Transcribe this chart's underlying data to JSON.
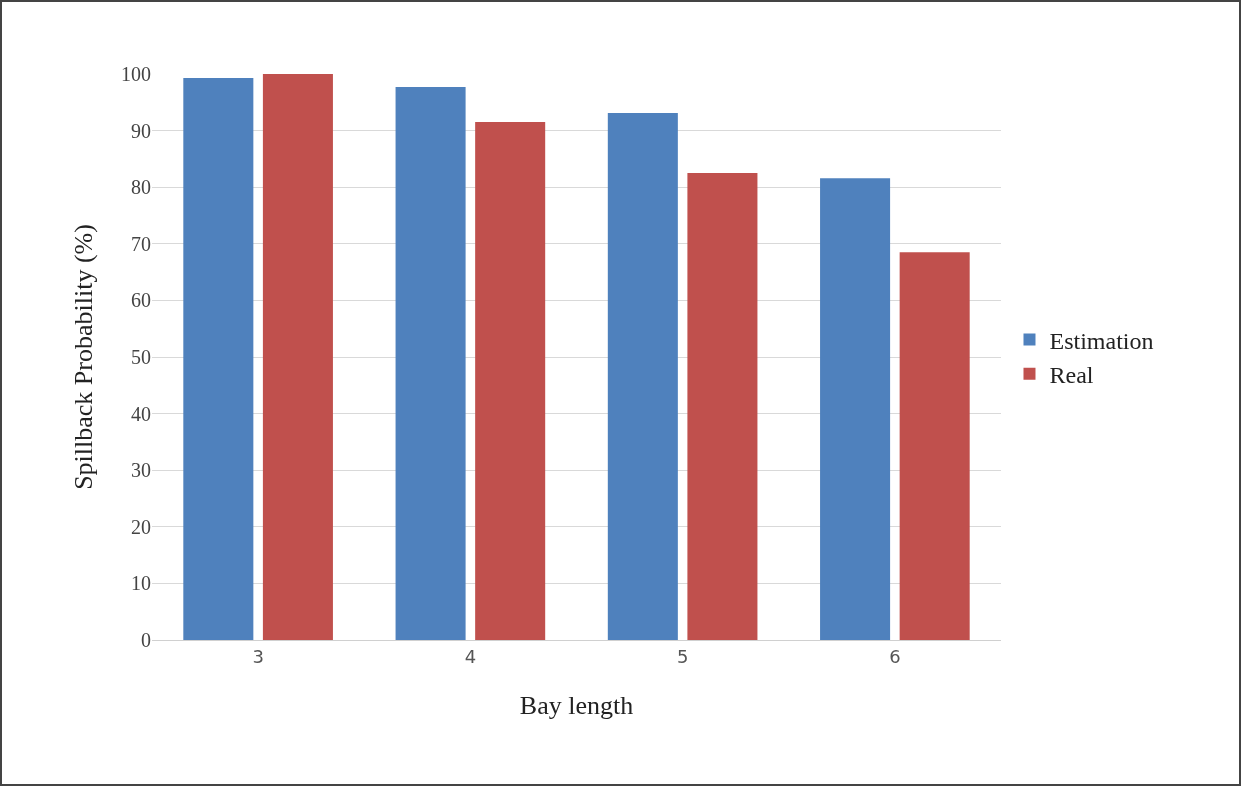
{
  "chart_data": {
    "type": "bar",
    "xlabel": "Bay length",
    "ylabel": "Spillback Probability (%)",
    "categories": [
      "3",
      "4",
      "5",
      "6"
    ],
    "series": [
      {
        "name": "Estimation",
        "color": "#4f81bd",
        "values": [
          99.3,
          97.7,
          93.1,
          81.6
        ]
      },
      {
        "name": "Real",
        "color": "#c0504d",
        "values": [
          100,
          91.5,
          82.5,
          68.5
        ]
      }
    ],
    "ylim": [
      0,
      100
    ],
    "yticks": [
      0,
      10,
      20,
      30,
      40,
      50,
      60,
      70,
      80,
      90,
      100
    ],
    "grid": "y",
    "legend": "right"
  }
}
